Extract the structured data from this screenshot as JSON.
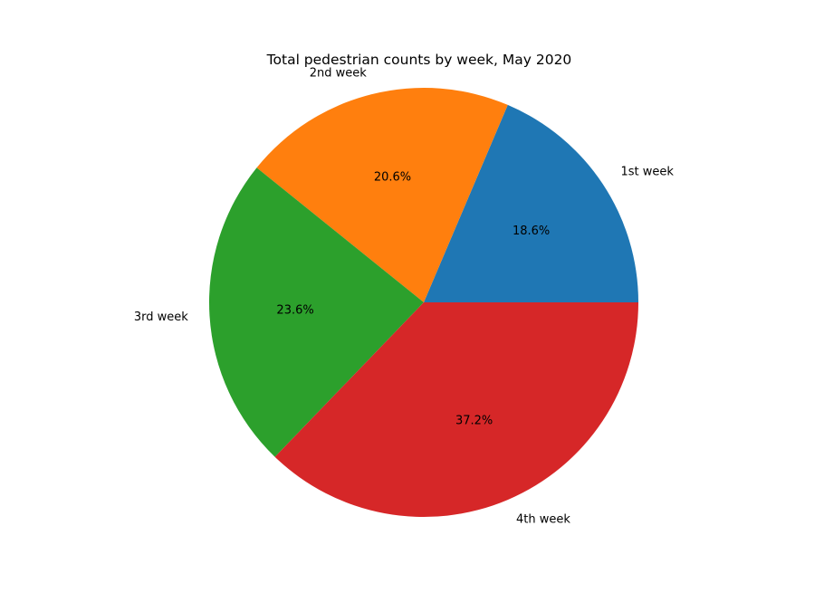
{
  "chart_data": {
    "type": "pie",
    "title": "Total pedestrian counts by week, May 2020",
    "categories": [
      "1st week",
      "2nd week",
      "3rd week",
      "4th week"
    ],
    "values": [
      18.6,
      20.6,
      23.6,
      37.2
    ],
    "percent_labels": [
      "18.6%",
      "20.6%",
      "23.6%",
      "37.2%"
    ],
    "colors": [
      "#1f77b4",
      "#ff7f0e",
      "#2ca02c",
      "#d62728"
    ],
    "start_angle_deg": 0,
    "direction": "counterclockwise",
    "legend": "none"
  }
}
